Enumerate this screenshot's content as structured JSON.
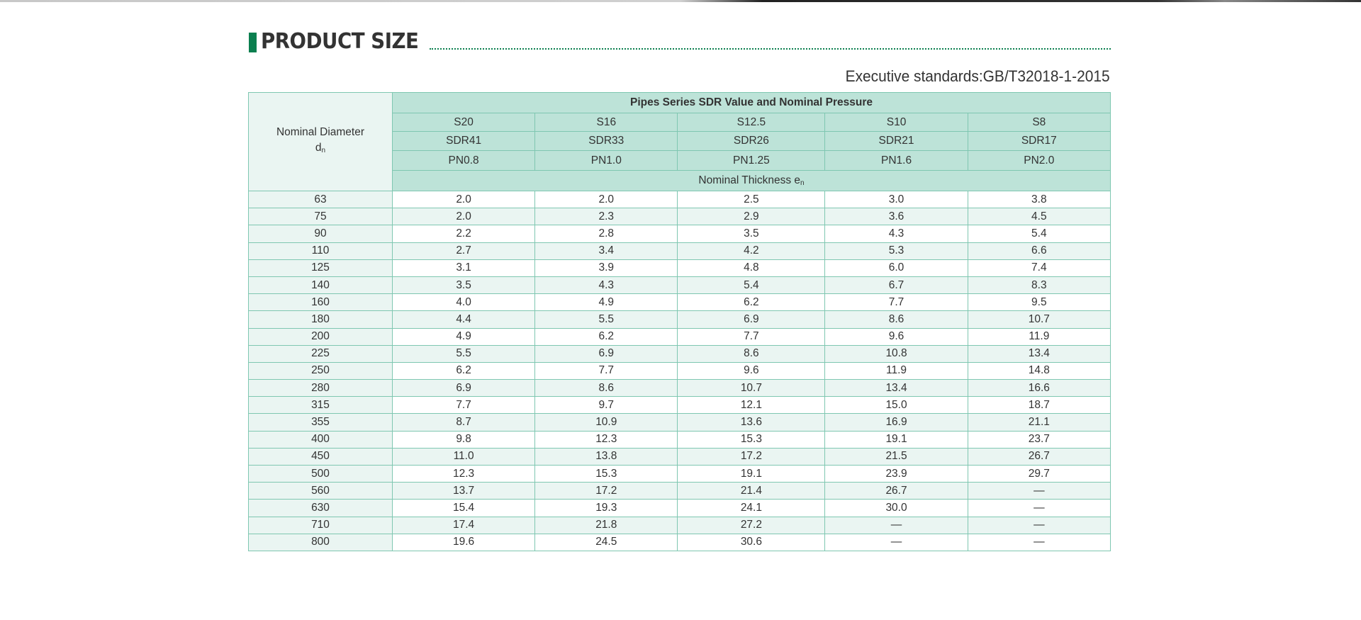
{
  "header": {
    "title": "PRODUCT SIZE",
    "standard": "Executive standards:GB/T32018-1-2015"
  },
  "colors": {
    "accent": "#0b7f4f",
    "header_fill": "#bde3d8",
    "alt_row": "#eaf5f2",
    "border": "#7fc7b1"
  },
  "table": {
    "corner_label": "Nominal Diameter",
    "corner_sub": "d",
    "corner_sub_index": "n",
    "group_header": "Pipes Series SDR Value and Nominal Pressure",
    "series": [
      "S20",
      "S16",
      "S12.5",
      "S10",
      "S8"
    ],
    "sdr": [
      "SDR41",
      "SDR33",
      "SDR26",
      "SDR21",
      "SDR17"
    ],
    "pn": [
      "PN0.8",
      "PN1.0",
      "PN1.25",
      "PN1.6",
      "PN2.0"
    ],
    "thickness_label": "Nominal Thickness e",
    "thickness_sub": "n",
    "rows": [
      [
        "63",
        "2.0",
        "2.0",
        "2.5",
        "3.0",
        "3.8"
      ],
      [
        "75",
        "2.0",
        "2.3",
        "2.9",
        "3.6",
        "4.5"
      ],
      [
        "90",
        "2.2",
        "2.8",
        "3.5",
        "4.3",
        "5.4"
      ],
      [
        "110",
        "2.7",
        "3.4",
        "4.2",
        "5.3",
        "6.6"
      ],
      [
        "125",
        "3.1",
        "3.9",
        "4.8",
        "6.0",
        "7.4"
      ],
      [
        "140",
        "3.5",
        "4.3",
        "5.4",
        "6.7",
        "8.3"
      ],
      [
        "160",
        "4.0",
        "4.9",
        "6.2",
        "7.7",
        "9.5"
      ],
      [
        "180",
        "4.4",
        "5.5",
        "6.9",
        "8.6",
        "10.7"
      ],
      [
        "200",
        "4.9",
        "6.2",
        "7.7",
        "9.6",
        "11.9"
      ],
      [
        "225",
        "5.5",
        "6.9",
        "8.6",
        "10.8",
        "13.4"
      ],
      [
        "250",
        "6.2",
        "7.7",
        "9.6",
        "11.9",
        "14.8"
      ],
      [
        "280",
        "6.9",
        "8.6",
        "10.7",
        "13.4",
        "16.6"
      ],
      [
        "315",
        "7.7",
        "9.7",
        "12.1",
        "15.0",
        "18.7"
      ],
      [
        "355",
        "8.7",
        "10.9",
        "13.6",
        "16.9",
        "21.1"
      ],
      [
        "400",
        "9.8",
        "12.3",
        "15.3",
        "19.1",
        "23.7"
      ],
      [
        "450",
        "11.0",
        "13.8",
        "17.2",
        "21.5",
        "26.7"
      ],
      [
        "500",
        "12.3",
        "15.3",
        "19.1",
        "23.9",
        "29.7"
      ],
      [
        "560",
        "13.7",
        "17.2",
        "21.4",
        "26.7",
        "—"
      ],
      [
        "630",
        "15.4",
        "19.3",
        "24.1",
        "30.0",
        "—"
      ],
      [
        "710",
        "17.4",
        "21.8",
        "27.2",
        "—",
        "—"
      ],
      [
        "800",
        "19.6",
        "24.5",
        "30.6",
        "—",
        "—"
      ]
    ]
  }
}
